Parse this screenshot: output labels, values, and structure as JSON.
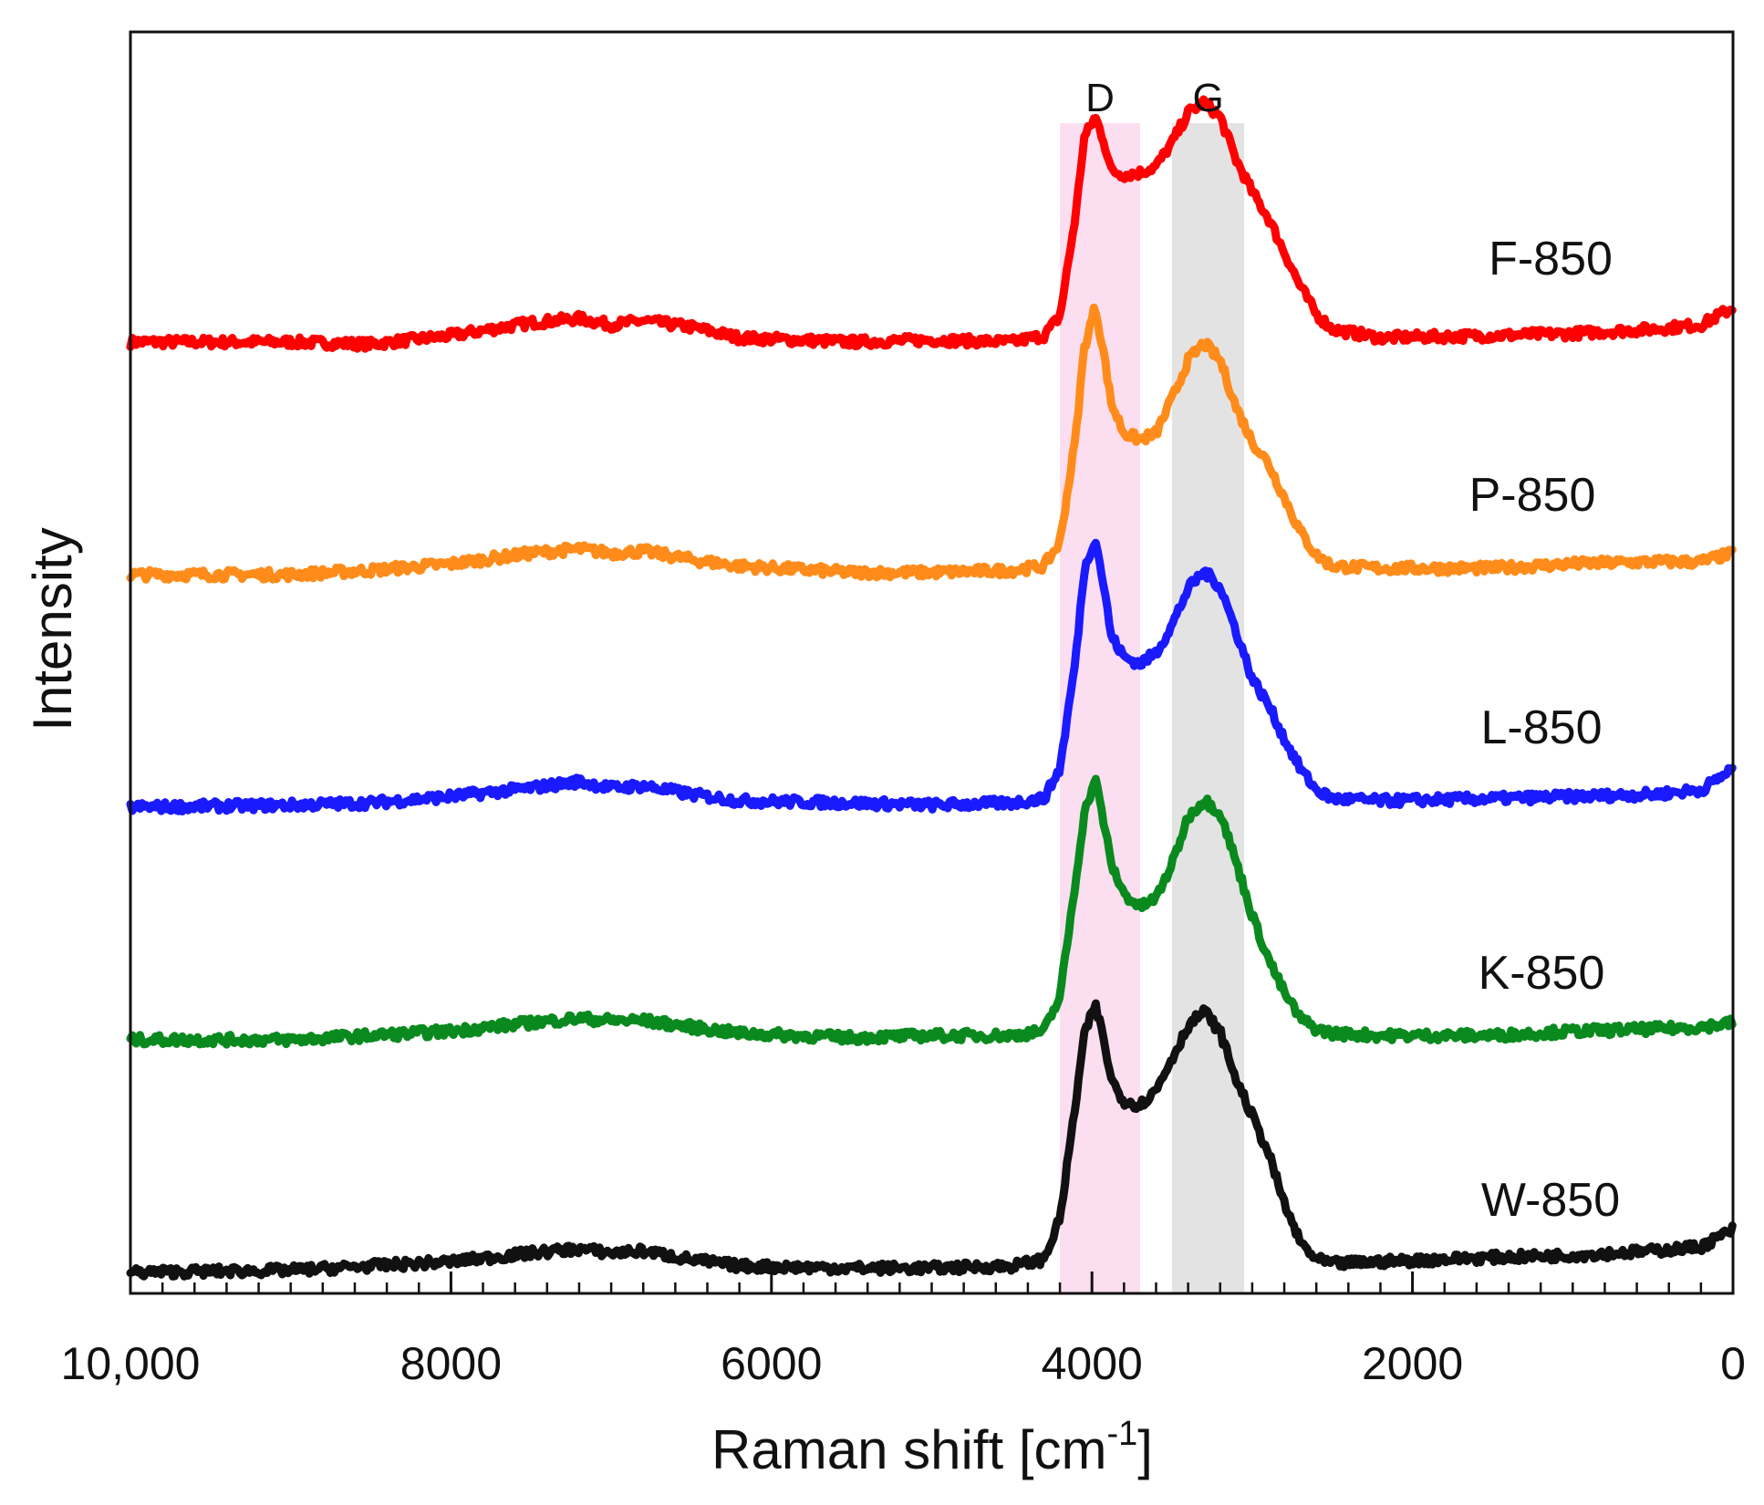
{
  "chart_data": {
    "type": "line",
    "title": "",
    "xlabel": "Raman shift [cm",
    "xlabel_sup": "-1",
    "xlabel_close": "]",
    "ylabel": "Intensity",
    "xlim": [
      10000,
      0
    ],
    "x_reversed": true,
    "y_ticks_shown": false,
    "grid": false,
    "x_ticks": [
      10000,
      8000,
      6000,
      4000,
      2000,
      0
    ],
    "x_tick_labels": [
      "10,000",
      "8000",
      "6000",
      "4000",
      "2000",
      "0"
    ],
    "x_minor_step": 200,
    "bands": [
      {
        "label": "D",
        "from": 4200,
        "to": 3700,
        "color": "#fbd3ec"
      },
      {
        "label": "G",
        "from": 3500,
        "to": 3050,
        "color": "#d9d9d9"
      }
    ],
    "series": [
      {
        "name": "F-850",
        "color": "#ff0000",
        "offset": 4,
        "points": [
          [
            10000,
            0.0
          ],
          [
            9000,
            0.0
          ],
          [
            8500,
            -0.01
          ],
          [
            8000,
            0.03
          ],
          [
            7500,
            0.09
          ],
          [
            7200,
            0.11
          ],
          [
            7000,
            0.08
          ],
          [
            6800,
            0.1
          ],
          [
            6500,
            0.07
          ],
          [
            6200,
            0.02
          ],
          [
            5500,
            0.0
          ],
          [
            5000,
            0.01
          ],
          [
            4500,
            0.0
          ],
          [
            4300,
            0.03
          ],
          [
            4200,
            0.12
          ],
          [
            4100,
            0.6
          ],
          [
            4050,
            0.95
          ],
          [
            3980,
            1.05
          ],
          [
            3930,
            0.95
          ],
          [
            3880,
            0.8
          ],
          [
            3800,
            0.78
          ],
          [
            3700,
            0.79
          ],
          [
            3600,
            0.82
          ],
          [
            3500,
            0.93
          ],
          [
            3400,
            1.07
          ],
          [
            3300,
            1.12
          ],
          [
            3200,
            1.05
          ],
          [
            3100,
            0.85
          ],
          [
            3000,
            0.7
          ],
          [
            2900,
            0.58
          ],
          [
            2800,
            0.42
          ],
          [
            2700,
            0.26
          ],
          [
            2600,
            0.13
          ],
          [
            2500,
            0.06
          ],
          [
            2200,
            0.02
          ],
          [
            1500,
            0.03
          ],
          [
            1000,
            0.04
          ],
          [
            500,
            0.06
          ],
          [
            200,
            0.08
          ],
          [
            0,
            0.16
          ]
        ]
      },
      {
        "name": "P-850",
        "color": "#ff8c1a",
        "offset": 3,
        "points": [
          [
            10000,
            0.0
          ],
          [
            9000,
            0.0
          ],
          [
            8500,
            0.02
          ],
          [
            8000,
            0.05
          ],
          [
            7500,
            0.1
          ],
          [
            7200,
            0.12
          ],
          [
            7000,
            0.1
          ],
          [
            6800,
            0.11
          ],
          [
            6500,
            0.07
          ],
          [
            6200,
            0.04
          ],
          [
            5500,
            0.01
          ],
          [
            5000,
            0.01
          ],
          [
            4500,
            0.02
          ],
          [
            4300,
            0.04
          ],
          [
            4200,
            0.15
          ],
          [
            4100,
            0.65
          ],
          [
            4050,
            1.05
          ],
          [
            3980,
            1.25
          ],
          [
            3930,
            1.05
          ],
          [
            3880,
            0.8
          ],
          [
            3800,
            0.66
          ],
          [
            3700,
            0.63
          ],
          [
            3600,
            0.66
          ],
          [
            3500,
            0.82
          ],
          [
            3400,
            1.0
          ],
          [
            3300,
            1.08
          ],
          [
            3200,
            1.0
          ],
          [
            3100,
            0.78
          ],
          [
            3000,
            0.62
          ],
          [
            2900,
            0.52
          ],
          [
            2800,
            0.36
          ],
          [
            2700,
            0.2
          ],
          [
            2600,
            0.09
          ],
          [
            2500,
            0.04
          ],
          [
            2200,
            0.03
          ],
          [
            1500,
            0.03
          ],
          [
            1000,
            0.05
          ],
          [
            500,
            0.06
          ],
          [
            200,
            0.06
          ],
          [
            0,
            0.1
          ]
        ]
      },
      {
        "name": "L-850",
        "color": "#1a1aff",
        "offset": 2,
        "points": [
          [
            10000,
            0.0
          ],
          [
            9000,
            0.01
          ],
          [
            8500,
            0.02
          ],
          [
            8000,
            0.05
          ],
          [
            7500,
            0.09
          ],
          [
            7200,
            0.12
          ],
          [
            7000,
            0.09
          ],
          [
            6800,
            0.1
          ],
          [
            6500,
            0.06
          ],
          [
            6200,
            0.03
          ],
          [
            5500,
            0.02
          ],
          [
            5000,
            0.01
          ],
          [
            4500,
            0.02
          ],
          [
            4300,
            0.04
          ],
          [
            4200,
            0.18
          ],
          [
            4100,
            0.7
          ],
          [
            4050,
            1.1
          ],
          [
            3980,
            1.26
          ],
          [
            3930,
            1.05
          ],
          [
            3880,
            0.8
          ],
          [
            3800,
            0.7
          ],
          [
            3700,
            0.67
          ],
          [
            3600,
            0.72
          ],
          [
            3500,
            0.85
          ],
          [
            3400,
            1.02
          ],
          [
            3300,
            1.1
          ],
          [
            3200,
            1.03
          ],
          [
            3100,
            0.82
          ],
          [
            3000,
            0.6
          ],
          [
            2900,
            0.48
          ],
          [
            2800,
            0.32
          ],
          [
            2700,
            0.18
          ],
          [
            2600,
            0.08
          ],
          [
            2500,
            0.04
          ],
          [
            2200,
            0.03
          ],
          [
            1500,
            0.04
          ],
          [
            1000,
            0.05
          ],
          [
            500,
            0.06
          ],
          [
            200,
            0.08
          ],
          [
            0,
            0.18
          ]
        ]
      },
      {
        "name": "K-850",
        "color": "#0a8a1e",
        "offset": 1,
        "points": [
          [
            10000,
            0.0
          ],
          [
            9000,
            0.0
          ],
          [
            8500,
            0.02
          ],
          [
            8000,
            0.04
          ],
          [
            7500,
            0.08
          ],
          [
            7200,
            0.1
          ],
          [
            7000,
            0.09
          ],
          [
            6800,
            0.09
          ],
          [
            6500,
            0.06
          ],
          [
            6200,
            0.03
          ],
          [
            5500,
            0.01
          ],
          [
            5000,
            0.02
          ],
          [
            4500,
            0.02
          ],
          [
            4300,
            0.04
          ],
          [
            4200,
            0.2
          ],
          [
            4100,
            0.75
          ],
          [
            4050,
            1.05
          ],
          [
            3980,
            1.22
          ],
          [
            3930,
            1.03
          ],
          [
            3880,
            0.82
          ],
          [
            3800,
            0.68
          ],
          [
            3700,
            0.62
          ],
          [
            3600,
            0.66
          ],
          [
            3500,
            0.82
          ],
          [
            3400,
            1.04
          ],
          [
            3300,
            1.12
          ],
          [
            3200,
            1.06
          ],
          [
            3100,
            0.83
          ],
          [
            3000,
            0.58
          ],
          [
            2900,
            0.38
          ],
          [
            2800,
            0.22
          ],
          [
            2700,
            0.1
          ],
          [
            2600,
            0.05
          ],
          [
            2500,
            0.03
          ],
          [
            2200,
            0.02
          ],
          [
            1500,
            0.02
          ],
          [
            1000,
            0.04
          ],
          [
            500,
            0.05
          ],
          [
            200,
            0.06
          ],
          [
            0,
            0.08
          ]
        ]
      },
      {
        "name": "W-850",
        "color": "#111111",
        "offset": 0,
        "points": [
          [
            10000,
            0.0
          ],
          [
            9000,
            0.01
          ],
          [
            8500,
            0.03
          ],
          [
            8000,
            0.05
          ],
          [
            7500,
            0.09
          ],
          [
            7200,
            0.11
          ],
          [
            7000,
            0.09
          ],
          [
            6800,
            0.1
          ],
          [
            6500,
            0.06
          ],
          [
            6200,
            0.03
          ],
          [
            5500,
            0.02
          ],
          [
            5000,
            0.02
          ],
          [
            4500,
            0.03
          ],
          [
            4300,
            0.06
          ],
          [
            4200,
            0.25
          ],
          [
            4100,
            0.8
          ],
          [
            4050,
            1.1
          ],
          [
            3980,
            1.25
          ],
          [
            3930,
            1.1
          ],
          [
            3880,
            0.9
          ],
          [
            3800,
            0.8
          ],
          [
            3700,
            0.78
          ],
          [
            3600,
            0.85
          ],
          [
            3500,
            1.0
          ],
          [
            3400,
            1.15
          ],
          [
            3300,
            1.22
          ],
          [
            3200,
            1.12
          ],
          [
            3100,
            0.9
          ],
          [
            3000,
            0.73
          ],
          [
            2900,
            0.56
          ],
          [
            2800,
            0.32
          ],
          [
            2700,
            0.14
          ],
          [
            2600,
            0.06
          ],
          [
            2500,
            0.04
          ],
          [
            2200,
            0.05
          ],
          [
            1500,
            0.07
          ],
          [
            1000,
            0.08
          ],
          [
            500,
            0.1
          ],
          [
            200,
            0.12
          ],
          [
            0,
            0.2
          ]
        ]
      }
    ]
  }
}
